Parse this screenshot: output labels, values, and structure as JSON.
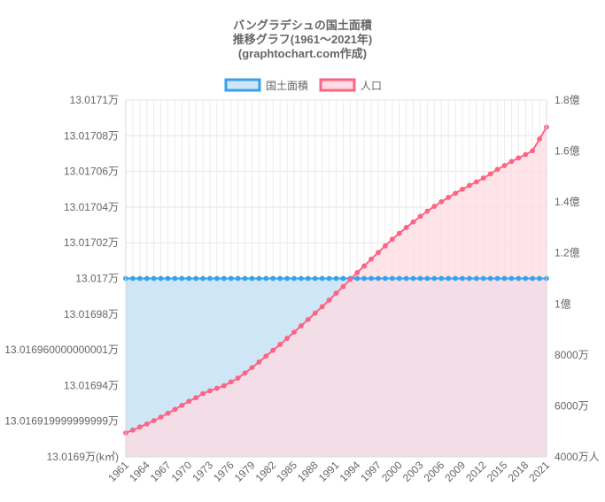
{
  "chart_data": {
    "type": "area",
    "title_lines": [
      "バングラデシュの国土面積",
      "推移グラフ(1961〜2021年)",
      "(graphtochart.com作成)"
    ],
    "legend": [
      {
        "label": "国土面積",
        "border": "#36a2eb",
        "fill": "#cfe6f7"
      },
      {
        "label": "人口",
        "border": "#ff6384",
        "fill": "#ffdbe3"
      }
    ],
    "x": [
      1961,
      1962,
      1963,
      1964,
      1965,
      1966,
      1967,
      1968,
      1969,
      1970,
      1971,
      1972,
      1973,
      1974,
      1975,
      1976,
      1977,
      1978,
      1979,
      1980,
      1981,
      1982,
      1983,
      1984,
      1985,
      1986,
      1987,
      1988,
      1989,
      1990,
      1991,
      1992,
      1993,
      1994,
      1995,
      1996,
      1997,
      1998,
      1999,
      2000,
      2001,
      2002,
      2003,
      2004,
      2005,
      2006,
      2007,
      2008,
      2009,
      2010,
      2011,
      2012,
      2013,
      2014,
      2015,
      2016,
      2017,
      2018,
      2019,
      2020,
      2021
    ],
    "x_tick_labels": [
      "1961",
      "1964",
      "1967",
      "1970",
      "1973",
      "1976",
      "1979",
      "1982",
      "1985",
      "1988",
      "1991",
      "1994",
      "1997",
      "2000",
      "2003",
      "2006",
      "2009",
      "2012",
      "2015",
      "2018",
      "2021"
    ],
    "y_left": {
      "min": 13.0169,
      "max": 13.0171,
      "ticks": [
        {
          "value": 13.0171,
          "label": "13.0171万"
        },
        {
          "value": 13.01708,
          "label": "13.01708万"
        },
        {
          "value": 13.01706,
          "label": "13.01706万"
        },
        {
          "value": 13.01704,
          "label": "13.01704万"
        },
        {
          "value": 13.01702,
          "label": "13.01702万"
        },
        {
          "value": 13.017,
          "label": "13.017万"
        },
        {
          "value": 13.01698,
          "label": "13.01698万"
        },
        {
          "value": 13.01696,
          "label": "13.016960000000001万"
        },
        {
          "value": 13.01694,
          "label": "13.01694万"
        },
        {
          "value": 13.01692,
          "label": "13.016919999999999万"
        },
        {
          "value": 13.0169,
          "label": "13.0169万(k㎡)"
        }
      ]
    },
    "y_right": {
      "min": 40000000,
      "max": 180000000,
      "ticks": [
        {
          "value": 180000000,
          "label": "1.8億"
        },
        {
          "value": 160000000,
          "label": "1.6億"
        },
        {
          "value": 140000000,
          "label": "1.4億"
        },
        {
          "value": 120000000,
          "label": "1.2億"
        },
        {
          "value": 100000000,
          "label": "1億"
        },
        {
          "value": 80000000,
          "label": "8000万"
        },
        {
          "value": 60000000,
          "label": "6000万"
        },
        {
          "value": 40000000,
          "label": "4000万人"
        }
      ]
    },
    "series": [
      {
        "name": "国土面積",
        "axis": "left",
        "color": "#36a2eb",
        "values": [
          13.017,
          13.017,
          13.017,
          13.017,
          13.017,
          13.017,
          13.017,
          13.017,
          13.017,
          13.017,
          13.017,
          13.017,
          13.017,
          13.017,
          13.017,
          13.017,
          13.017,
          13.017,
          13.017,
          13.017,
          13.017,
          13.017,
          13.017,
          13.017,
          13.017,
          13.017,
          13.017,
          13.017,
          13.017,
          13.017,
          13.017,
          13.017,
          13.017,
          13.017,
          13.017,
          13.017,
          13.017,
          13.017,
          13.017,
          13.017,
          13.017,
          13.017,
          13.017,
          13.017,
          13.017,
          13.017,
          13.017,
          13.017,
          13.017,
          13.017,
          13.017,
          13.017,
          13.017,
          13.017,
          13.017,
          13.017,
          13.017,
          13.017,
          13.017,
          13.017,
          13.017
        ]
      },
      {
        "name": "人口",
        "axis": "right",
        "color": "#ff6384",
        "values": [
          49400000,
          50500000,
          51700000,
          52900000,
          54200000,
          55600000,
          57100000,
          58600000,
          60200000,
          61800000,
          63200000,
          64800000,
          65900000,
          66900000,
          67900000,
          69400000,
          70900000,
          72900000,
          75000000,
          77200000,
          79500000,
          81800000,
          84100000,
          86500000,
          88900000,
          91400000,
          93900000,
          96400000,
          98900000,
          101500000,
          104200000,
          106800000,
          109600000,
          112300000,
          114900000,
          117600000,
          120200000,
          122800000,
          125400000,
          127700000,
          130000000,
          132200000,
          134400000,
          136400000,
          138300000,
          140100000,
          141800000,
          143400000,
          145000000,
          146500000,
          147900000,
          149400000,
          151000000,
          152800000,
          154300000,
          155900000,
          157300000,
          158600000,
          160100000,
          164700000,
          169400000
        ]
      }
    ],
    "grid": true
  }
}
